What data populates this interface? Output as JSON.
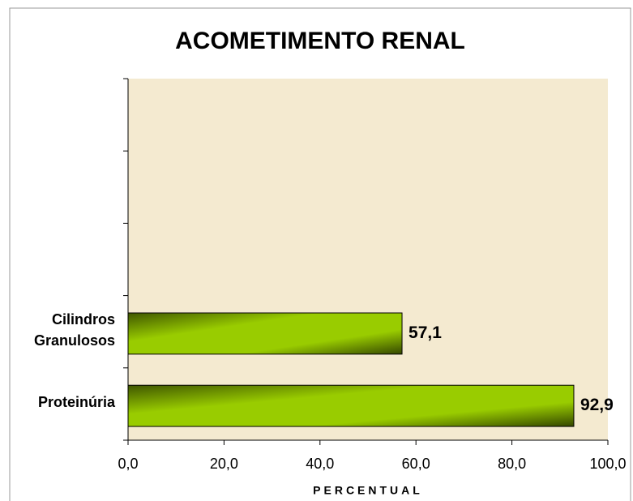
{
  "chart_data": {
    "type": "bar",
    "orientation": "horizontal",
    "title": "ACOMETIMENTO RENAL",
    "categories": [
      "Proteinúria",
      "Cilindros Granulosos",
      null,
      null,
      null
    ],
    "values": [
      92.9,
      57.1,
      null,
      null,
      null
    ],
    "value_labels": [
      "92,9",
      "57,1",
      null,
      null,
      null
    ],
    "color": "#99cc00",
    "x_label": "PERCENTUAL",
    "xlim": [
      0,
      100
    ],
    "xticks": [
      {
        "value": 0,
        "label": "0,0"
      },
      {
        "value": 20,
        "label": "20,0"
      },
      {
        "value": 40,
        "label": "40,0"
      },
      {
        "value": 60,
        "label": "60,0"
      },
      {
        "value": 80,
        "label": "80,0"
      },
      {
        "value": 100,
        "label": "100,0"
      }
    ],
    "grid": false
  }
}
